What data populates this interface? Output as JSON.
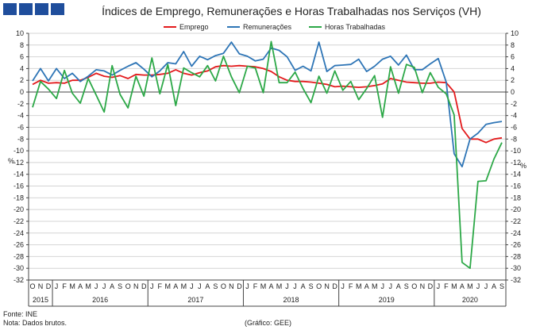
{
  "header": {
    "title": "Índices de Emprego, Remunerações e Horas Trabalhadas nos Serviços (VH)"
  },
  "footer": {
    "source": "Fonte: INE",
    "note": "Nota: Dados brutos.",
    "credit": "(Gráfico: GEE)"
  },
  "chart_data": {
    "type": "line",
    "title": "Índices de Emprego, Remunerações e Horas Trabalhadas nos Serviços (VH)",
    "ylabel_left": "%",
    "ylabel_right": "%",
    "ylim": [
      -32,
      10
    ],
    "ytick_step": 2,
    "yticks": [
      "10",
      "8",
      "6",
      "4",
      "2",
      "0",
      "-2",
      "-4",
      "-6",
      "-8",
      "-10",
      "-12",
      "-14",
      "-16",
      "-18",
      "-20",
      "-22",
      "-24",
      "-26",
      "-28",
      "-30",
      "-32"
    ],
    "grid": true,
    "legend_position": "top-center",
    "colors": {
      "Emprego": "#e31a1c",
      "Remunerações": "#2e75b6",
      "Horas Trabalhadas": "#2ca847"
    },
    "x_months": [
      "O",
      "N",
      "D",
      "J",
      "F",
      "M",
      "A",
      "M",
      "J",
      "J",
      "A",
      "S",
      "O",
      "N",
      "D",
      "J",
      "F",
      "M",
      "A",
      "M",
      "J",
      "J",
      "A",
      "S",
      "O",
      "N",
      "D",
      "J",
      "F",
      "M",
      "A",
      "M",
      "J",
      "J",
      "A",
      "S",
      "O",
      "N",
      "D",
      "J",
      "F",
      "M",
      "A",
      "M",
      "J",
      "J",
      "A",
      "S",
      "O",
      "N",
      "D",
      "J",
      "F",
      "M",
      "A",
      "M",
      "J",
      "J",
      "A",
      "S"
    ],
    "x_years": [
      {
        "label": "2015",
        "start": 0,
        "count": 3
      },
      {
        "label": "2016",
        "start": 3,
        "count": 12
      },
      {
        "label": "2017",
        "start": 15,
        "count": 12
      },
      {
        "label": "2018",
        "start": 27,
        "count": 12
      },
      {
        "label": "2019",
        "start": 39,
        "count": 12
      },
      {
        "label": "2020",
        "start": 51,
        "count": 9
      }
    ],
    "series": [
      {
        "name": "Emprego",
        "values": [
          1.3,
          2.0,
          1.5,
          1.6,
          1.5,
          2.0,
          2.0,
          2.5,
          3.2,
          2.7,
          2.5,
          2.8,
          2.3,
          3.0,
          2.9,
          2.9,
          3.0,
          3.2,
          3.8,
          3.2,
          2.9,
          3.3,
          3.6,
          4.3,
          4.5,
          4.4,
          4.5,
          4.4,
          4.3,
          4.0,
          3.5,
          2.6,
          2.0,
          1.8,
          1.8,
          1.7,
          1.5,
          1.3,
          0.9,
          1.0,
          0.9,
          0.8,
          0.9,
          1.1,
          1.4,
          2.3,
          2.0,
          1.7,
          1.6,
          1.5,
          1.5,
          1.7,
          1.6,
          0.0,
          -6.2,
          -8.0,
          -8.0,
          -8.6,
          -8.0,
          -7.8
        ]
      },
      {
        "name": "Remunerações",
        "values": [
          1.9,
          4.0,
          1.9,
          4.0,
          2.3,
          3.2,
          1.8,
          2.7,
          3.8,
          3.6,
          2.9,
          3.7,
          4.4,
          5.0,
          3.9,
          2.6,
          3.6,
          5.0,
          4.8,
          6.9,
          4.4,
          6.1,
          5.5,
          6.2,
          6.6,
          8.5,
          6.5,
          6.1,
          5.3,
          5.6,
          7.5,
          7.1,
          6.0,
          3.7,
          4.4,
          3.6,
          8.5,
          3.5,
          4.5,
          4.6,
          4.7,
          5.6,
          3.5,
          4.4,
          5.6,
          6.1,
          4.6,
          6.3,
          3.8,
          3.8,
          4.8,
          5.7,
          1.7,
          -10.5,
          -12.7,
          -8.0,
          -7.0,
          -5.5,
          -5.2,
          -5.0
        ]
      },
      {
        "name": "Horas Trabalhadas",
        "values": [
          -2.6,
          1.8,
          0.5,
          -1.1,
          3.7,
          -0.2,
          -1.9,
          2.3,
          -0.5,
          -3.4,
          4.5,
          -0.4,
          -2.7,
          2.7,
          -0.7,
          5.8,
          -0.3,
          4.7,
          -2.3,
          4.1,
          3.3,
          2.6,
          4.5,
          1.9,
          6.1,
          2.6,
          -0.1,
          4.4,
          4.1,
          -0.1,
          8.6,
          1.6,
          1.6,
          3.4,
          0.6,
          -1.8,
          2.7,
          -0.2,
          3.6,
          0.3,
          1.8,
          -1.3,
          0.6,
          2.8,
          -4.3,
          4.3,
          -0.2,
          4.7,
          4.2,
          -0.1,
          3.3,
          0.8,
          -0.3,
          -3.9,
          -29.0,
          -30.0,
          -15.2,
          -15.1,
          -11.4,
          -8.6
        ]
      }
    ]
  }
}
